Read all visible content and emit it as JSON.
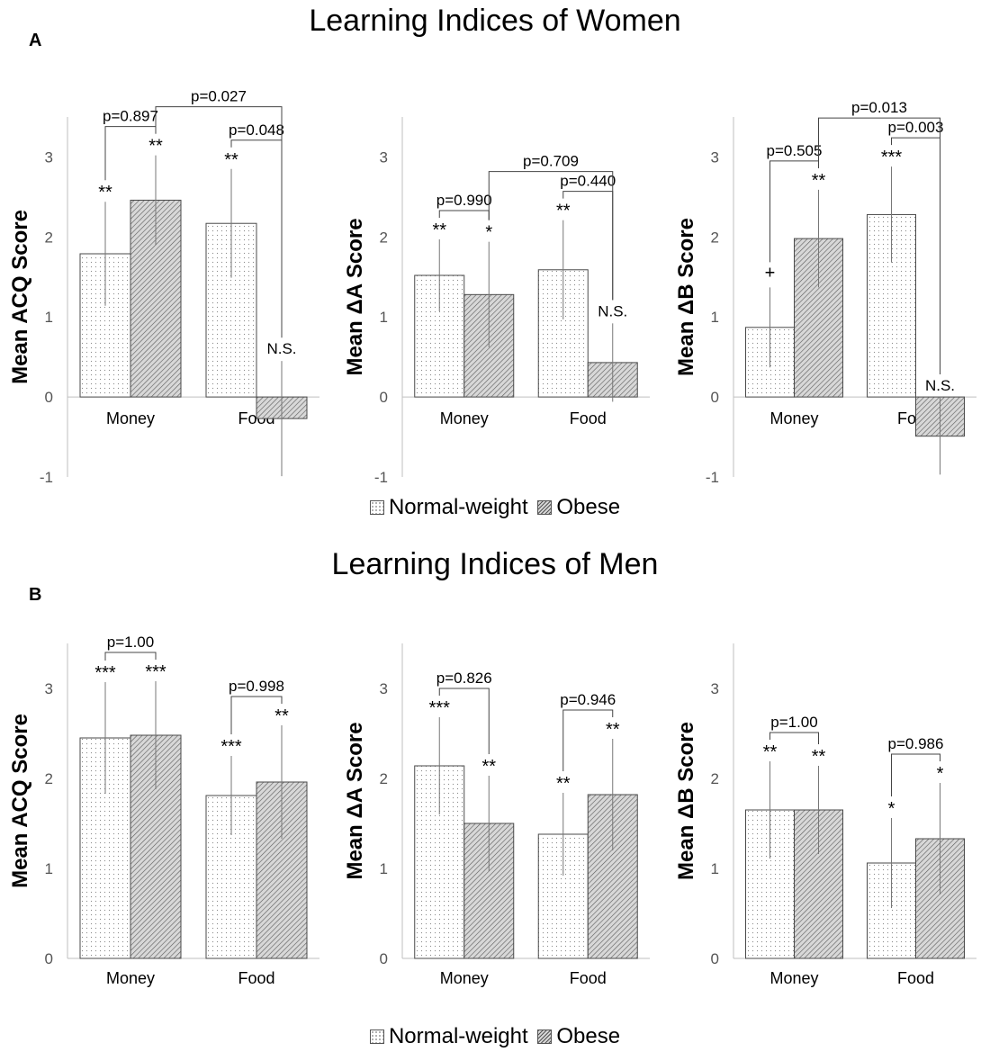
{
  "figure": {
    "title_women": "Learning Indices of Women",
    "title_men": "Learning Indices of Men",
    "panel_a": "A",
    "panel_b": "B",
    "legend_normal": "Normal-weight",
    "legend_obese": "Obese"
  },
  "chart_data": [
    {
      "type": "bar",
      "panel": "A",
      "group": "Women",
      "ylabel": "Mean ACQ Score",
      "ylim": [
        -1,
        3.5
      ],
      "yticks": [
        -1,
        0,
        1,
        2,
        3
      ],
      "categories": [
        "Money",
        "Food"
      ],
      "series": [
        {
          "name": "Normal-weight",
          "values": [
            1.79,
            2.17
          ],
          "err": [
            0.65,
            0.68
          ],
          "sig": [
            "**",
            "**"
          ]
        },
        {
          "name": "Obese",
          "values": [
            2.46,
            -0.27
          ],
          "err": [
            0.56,
            0.72
          ],
          "sig": [
            "**",
            "N.S."
          ]
        }
      ],
      "comparisons": [
        {
          "label": "p=0.897",
          "from": [
            0,
            0
          ],
          "to": [
            0,
            1
          ]
        },
        {
          "label": "p=0.048",
          "from": [
            1,
            0
          ],
          "to": [
            1,
            1
          ]
        },
        {
          "label": "p=0.027",
          "from": [
            0,
            1
          ],
          "to": [
            1,
            1
          ]
        }
      ]
    },
    {
      "type": "bar",
      "panel": "A",
      "group": "Women",
      "ylabel": "Mean ΔA Score",
      "ylim": [
        -1,
        3.5
      ],
      "yticks": [
        -1,
        0,
        1,
        2,
        3
      ],
      "categories": [
        "Money",
        "Food"
      ],
      "series": [
        {
          "name": "Normal-weight",
          "values": [
            1.52,
            1.59
          ],
          "err": [
            0.45,
            0.62
          ],
          "sig": [
            "**",
            "**"
          ]
        },
        {
          "name": "Obese",
          "values": [
            1.28,
            0.43
          ],
          "err": [
            0.66,
            0.49
          ],
          "sig": [
            "*",
            "N.S."
          ]
        }
      ],
      "comparisons": [
        {
          "label": "p=0.990",
          "from": [
            0,
            0
          ],
          "to": [
            0,
            1
          ]
        },
        {
          "label": "p=0.440",
          "from": [
            1,
            0
          ],
          "to": [
            1,
            1
          ]
        },
        {
          "label": "p=0.709",
          "from": [
            0,
            1
          ],
          "to": [
            1,
            1
          ]
        }
      ]
    },
    {
      "type": "bar",
      "panel": "A",
      "group": "Women",
      "ylabel": "Mean ΔB Score",
      "ylim": [
        -1,
        3.5
      ],
      "yticks": [
        -1,
        0,
        1,
        2,
        3
      ],
      "categories": [
        "Money",
        "Food"
      ],
      "series": [
        {
          "name": "Normal-weight",
          "values": [
            0.87,
            2.28
          ],
          "err": [
            0.5,
            0.6
          ],
          "sig": [
            "+",
            "***"
          ]
        },
        {
          "name": "Obese",
          "values": [
            1.98,
            -0.49
          ],
          "err": [
            0.61,
            0.48
          ],
          "sig": [
            "**",
            "N.S."
          ]
        }
      ],
      "comparisons": [
        {
          "label": "p=0.505",
          "from": [
            0,
            0
          ],
          "to": [
            0,
            1
          ]
        },
        {
          "label": "p=0.003",
          "from": [
            1,
            0
          ],
          "to": [
            1,
            1
          ]
        },
        {
          "label": "p=0.013",
          "from": [
            0,
            1
          ],
          "to": [
            1,
            1
          ]
        }
      ]
    },
    {
      "type": "bar",
      "panel": "B",
      "group": "Men",
      "ylabel": "Mean ACQ Score",
      "ylim": [
        0,
        3.5
      ],
      "yticks": [
        0,
        1,
        2,
        3
      ],
      "categories": [
        "Money",
        "Food"
      ],
      "series": [
        {
          "name": "Normal-weight",
          "values": [
            2.45,
            1.81
          ],
          "err": [
            0.62,
            0.44
          ],
          "sig": [
            "***",
            "***"
          ]
        },
        {
          "name": "Obese",
          "values": [
            2.48,
            1.96
          ],
          "err": [
            0.6,
            0.63
          ],
          "sig": [
            "***",
            "**"
          ]
        }
      ],
      "comparisons": [
        {
          "label": "p=1.00",
          "from": [
            0,
            0
          ],
          "to": [
            0,
            1
          ]
        },
        {
          "label": "p=0.998",
          "from": [
            1,
            0
          ],
          "to": [
            1,
            1
          ]
        }
      ]
    },
    {
      "type": "bar",
      "panel": "B",
      "group": "Men",
      "ylabel": "Mean ΔA Score",
      "ylim": [
        0,
        3.5
      ],
      "yticks": [
        0,
        1,
        2,
        3
      ],
      "categories": [
        "Money",
        "Food"
      ],
      "series": [
        {
          "name": "Normal-weight",
          "values": [
            2.14,
            1.38
          ],
          "err": [
            0.54,
            0.46
          ],
          "sig": [
            "***",
            "**"
          ]
        },
        {
          "name": "Obese",
          "values": [
            1.5,
            1.82
          ],
          "err": [
            0.53,
            0.62
          ],
          "sig": [
            "**",
            "**"
          ]
        }
      ],
      "comparisons": [
        {
          "label": "p=0.826",
          "from": [
            0,
            0
          ],
          "to": [
            0,
            1
          ]
        },
        {
          "label": "p=0.946",
          "from": [
            1,
            0
          ],
          "to": [
            1,
            1
          ]
        }
      ]
    },
    {
      "type": "bar",
      "panel": "B",
      "group": "Men",
      "ylabel": "Mean ΔB Score",
      "ylim": [
        0,
        3.5
      ],
      "yticks": [
        0,
        1,
        2,
        3
      ],
      "categories": [
        "Money",
        "Food"
      ],
      "series": [
        {
          "name": "Normal-weight",
          "values": [
            1.65,
            1.06
          ],
          "err": [
            0.54,
            0.5
          ],
          "sig": [
            "**",
            "*"
          ]
        },
        {
          "name": "Obese",
          "values": [
            1.65,
            1.33
          ],
          "err": [
            0.49,
            0.62
          ],
          "sig": [
            "**",
            "*"
          ]
        }
      ],
      "comparisons": [
        {
          "label": "p=1.00",
          "from": [
            0,
            0
          ],
          "to": [
            0,
            1
          ]
        },
        {
          "label": "p=0.986",
          "from": [
            1,
            0
          ],
          "to": [
            1,
            1
          ]
        }
      ]
    }
  ]
}
